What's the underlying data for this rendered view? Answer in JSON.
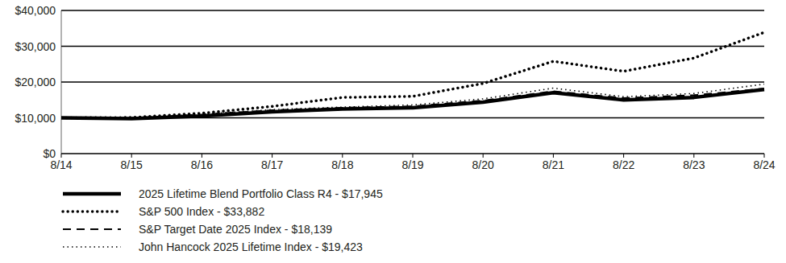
{
  "chart_data": {
    "type": "line",
    "categories": [
      "8/14",
      "8/15",
      "8/16",
      "8/17",
      "8/18",
      "8/19",
      "8/20",
      "8/21",
      "8/22",
      "8/23",
      "8/24"
    ],
    "series": [
      {
        "name": "2025 Lifetime Blend Portfolio Class R4 - $17,945",
        "color": "#000000",
        "line_style": "solid",
        "values": [
          10000,
          9750,
          10500,
          11700,
          12500,
          12800,
          14400,
          17000,
          15000,
          15700,
          17945
        ]
      },
      {
        "name": "S&P 500 Index - $33,882",
        "color": "#000000",
        "line_style": "heavy-dotted",
        "values": [
          10000,
          10100,
          11300,
          13200,
          15700,
          16000,
          19600,
          25800,
          23000,
          26700,
          33882
        ]
      },
      {
        "name": "S&P Target Date 2025 Index - $18,139",
        "color": "#000000",
        "line_style": "dashed",
        "values": [
          10000,
          9900,
          10900,
          12100,
          12800,
          13200,
          14800,
          17400,
          15500,
          16300,
          18139
        ]
      },
      {
        "name": "John Hancock 2025 Lifetime Index - $19,423",
        "color": "#000000",
        "line_style": "dotted",
        "values": [
          10000,
          10000,
          11000,
          12300,
          13000,
          13600,
          15300,
          18300,
          15900,
          16800,
          19423
        ]
      }
    ],
    "ylim": [
      0,
      40000
    ],
    "yticks": [
      {
        "value": 0,
        "label": "$0"
      },
      {
        "value": 10000,
        "label": "$10,000"
      },
      {
        "value": 20000,
        "label": "$20,000"
      },
      {
        "value": 30000,
        "label": "$30,000"
      },
      {
        "value": 40000,
        "label": "$40,000"
      }
    ],
    "grid": true,
    "legend": "bottom-left"
  }
}
